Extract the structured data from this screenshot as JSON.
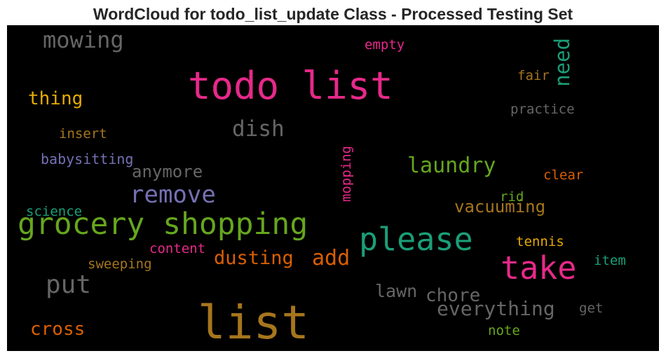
{
  "title": "WordCloud for todo_list_update Class - Processed Testing Set",
  "chart_data": {
    "type": "wordcloud",
    "background": "#000000",
    "words": [
      {
        "text": "todo list",
        "color": "#e7298a",
        "rank": 1
      },
      {
        "text": "list",
        "color": "#a6761d",
        "rank": 2
      },
      {
        "text": "grocery shopping",
        "color": "#66a61e",
        "rank": 3
      },
      {
        "text": "please",
        "color": "#1b9e77",
        "rank": 4
      },
      {
        "text": "take",
        "color": "#e7298a",
        "rank": 5
      },
      {
        "text": "remove",
        "color": "#7570b3",
        "rank": 6
      },
      {
        "text": "put",
        "color": "#666666",
        "rank": 7
      },
      {
        "text": "mowing",
        "color": "#666666",
        "rank": 8
      },
      {
        "text": "dish",
        "color": "#666666",
        "rank": 9
      },
      {
        "text": "laundry",
        "color": "#66a61e",
        "rank": 10
      },
      {
        "text": "need",
        "color": "#1b9e77",
        "rank": 11
      },
      {
        "text": "add",
        "color": "#d95f02",
        "rank": 12
      },
      {
        "text": "everything",
        "color": "#666666",
        "rank": 13
      },
      {
        "text": "dusting",
        "color": "#d95f02",
        "rank": 14
      },
      {
        "text": "cross",
        "color": "#d95f02",
        "rank": 15
      },
      {
        "text": "chore",
        "color": "#666666",
        "rank": 16
      },
      {
        "text": "vacuuming",
        "color": "#a6761d",
        "rank": 17
      },
      {
        "text": "lawn",
        "color": "#666666",
        "rank": 18
      },
      {
        "text": "anymore",
        "color": "#666666",
        "rank": 19
      },
      {
        "text": "thing",
        "color": "#e6ab02",
        "rank": 20
      },
      {
        "text": "babysitting",
        "color": "#7570b3",
        "rank": 21
      },
      {
        "text": "mopping",
        "color": "#e7298a",
        "rank": 22
      },
      {
        "text": "sweeping",
        "color": "#a6761d",
        "rank": 23
      },
      {
        "text": "content",
        "color": "#e7298a",
        "rank": 24
      },
      {
        "text": "science",
        "color": "#1b9e77",
        "rank": 25
      },
      {
        "text": "insert",
        "color": "#a6761d",
        "rank": 26
      },
      {
        "text": "practice",
        "color": "#666666",
        "rank": 27
      },
      {
        "text": "fair",
        "color": "#a6761d",
        "rank": 28
      },
      {
        "text": "empty",
        "color": "#e7298a",
        "rank": 29
      },
      {
        "text": "clear",
        "color": "#d95f02",
        "rank": 30
      },
      {
        "text": "rid",
        "color": "#66a61e",
        "rank": 31
      },
      {
        "text": "tennis",
        "color": "#e6ab02",
        "rank": 32
      },
      {
        "text": "item",
        "color": "#1b9e77",
        "rank": 33
      },
      {
        "text": "get",
        "color": "#666666",
        "rank": 34
      },
      {
        "text": "note",
        "color": "#66a61e",
        "rank": 35
      }
    ]
  }
}
